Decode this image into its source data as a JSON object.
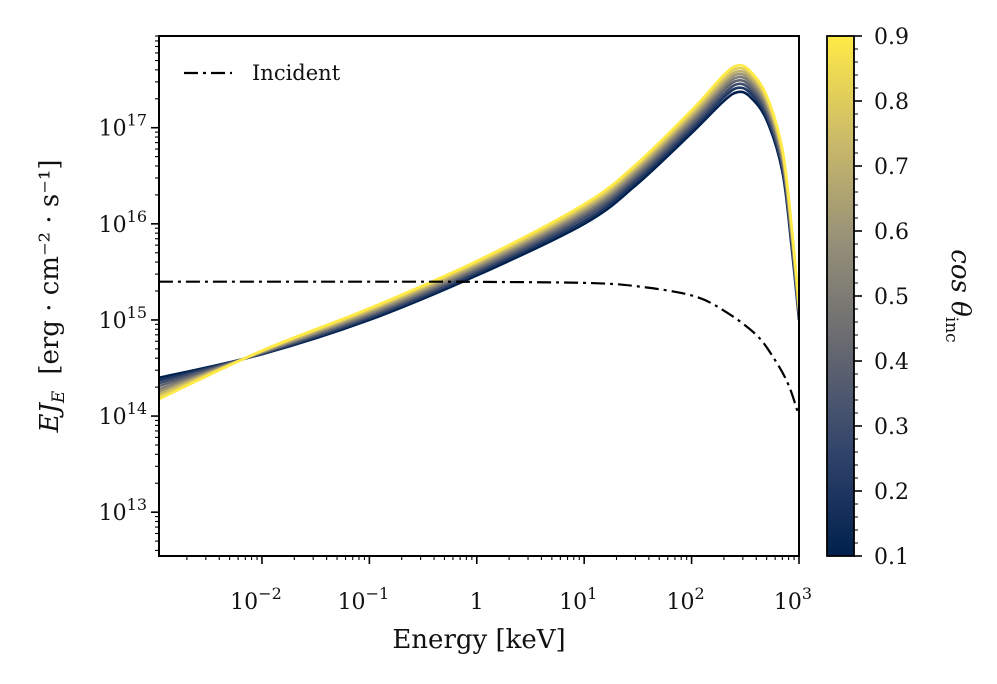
{
  "chart_data": {
    "type": "line",
    "x_scale": "log",
    "y_scale": "log",
    "xlabel": "Energy [keV]",
    "ylabel": {
      "symbol": "EJ",
      "subscript": "E",
      "units": "[erg · cm⁻² · s⁻¹]"
    },
    "xlim": [
      0.0011,
      1000
    ],
    "ylim": [
      3500000000000.0,
      9e+17
    ],
    "x_ticks": [
      {
        "value": 0.01,
        "base": "10",
        "exp": "−2"
      },
      {
        "value": 0.1,
        "base": "10",
        "exp": "−1"
      },
      {
        "value": 1,
        "base": "1",
        "exp": ""
      },
      {
        "value": 10,
        "base": "10",
        "exp": "1"
      },
      {
        "value": 100,
        "base": "10",
        "exp": "2"
      },
      {
        "value": 1000,
        "base": "10",
        "exp": "3"
      }
    ],
    "y_ticks": [
      {
        "value": 10000000000000.0,
        "base": "10",
        "exp": "13"
      },
      {
        "value": 100000000000000.0,
        "base": "10",
        "exp": "14"
      },
      {
        "value": 1000000000000000.0,
        "base": "10",
        "exp": "15"
      },
      {
        "value": 1e+16,
        "base": "10",
        "exp": "16"
      },
      {
        "value": 1e+17,
        "base": "10",
        "exp": "17"
      }
    ],
    "incident": {
      "name": "Incident",
      "style": "dashdot",
      "color": "#000000",
      "points": [
        [
          0.0011,
          2500000000000000.0
        ],
        [
          0.3,
          2500000000000000.0
        ],
        [
          1,
          2490000000000000.0
        ],
        [
          10,
          2430000000000000.0
        ],
        [
          30,
          2250000000000000.0
        ],
        [
          100,
          1800000000000000.0
        ],
        [
          200,
          1250000000000000.0
        ],
        [
          400,
          700000000000000.0
        ],
        [
          600,
          380000000000000.0
        ],
        [
          800,
          210000000000000.0
        ],
        [
          1000,
          100000000000000.0
        ]
      ]
    },
    "series": [
      {
        "name": "cos θ = 0.1",
        "cos_theta": 0.1,
        "points": [
          [
            0.0011,
            250000000000000.0
          ],
          [
            0.01,
            440000000000000.0
          ],
          [
            0.1,
            1000000000000000.0
          ],
          [
            1,
            2900000000000000.0
          ],
          [
            10,
            1e+16
          ],
          [
            30,
            2.5e+16
          ],
          [
            100,
            8.8e+16
          ],
          [
            200,
            1.9e+17
          ],
          [
            270,
            2.35e+17
          ],
          [
            350,
            2.1e+17
          ],
          [
            500,
            1.2e+17
          ],
          [
            700,
            3.5e+16
          ],
          [
            850,
            6000000000000000.0
          ],
          [
            1000,
            1000000000000000.0
          ]
        ]
      },
      {
        "name": "cos θ = 0.2",
        "cos_theta": 0.2,
        "points": [
          [
            0.0011,
            235000000000000.0
          ],
          [
            0.01,
            445000000000000.0
          ],
          [
            0.1,
            1040000000000000.0
          ],
          [
            1,
            3050000000000000.0
          ],
          [
            10,
            1.07e+16
          ],
          [
            30,
            2.7e+16
          ],
          [
            100,
            9.5e+16
          ],
          [
            200,
            2.08e+17
          ],
          [
            270,
            2.6e+17
          ],
          [
            350,
            2.3e+17
          ],
          [
            500,
            1.3e+17
          ],
          [
            700,
            3.8e+16
          ],
          [
            850,
            6500000000000000.0
          ],
          [
            1000,
            1050000000000000.0
          ]
        ]
      },
      {
        "name": "cos θ = 0.3",
        "cos_theta": 0.3,
        "points": [
          [
            0.0011,
            220000000000000.0
          ],
          [
            0.01,
            450000000000000.0
          ],
          [
            0.1,
            1080000000000000.0
          ],
          [
            1,
            3200000000000000.0
          ],
          [
            10,
            1.15e+16
          ],
          [
            30,
            2.9e+16
          ],
          [
            100,
            1.02e+17
          ],
          [
            200,
            2.25e+17
          ],
          [
            270,
            2.85e+17
          ],
          [
            350,
            2.5e+17
          ],
          [
            500,
            1.4e+17
          ],
          [
            700,
            4.1e+16
          ],
          [
            850,
            7000000000000000.0
          ],
          [
            1000,
            1100000000000000.0
          ]
        ]
      },
      {
        "name": "cos θ = 0.4",
        "cos_theta": 0.4,
        "points": [
          [
            0.0011,
            205000000000000.0
          ],
          [
            0.01,
            455000000000000.0
          ],
          [
            0.1,
            1120000000000000.0
          ],
          [
            1,
            3350000000000000.0
          ],
          [
            10,
            1.22e+16
          ],
          [
            30,
            3.1e+16
          ],
          [
            100,
            1.1e+17
          ],
          [
            200,
            2.45e+17
          ],
          [
            270,
            3.1e+17
          ],
          [
            350,
            2.72e+17
          ],
          [
            500,
            1.52e+17
          ],
          [
            700,
            4.4e+16
          ],
          [
            850,
            7500000000000000.0
          ],
          [
            1000,
            1150000000000000.0
          ]
        ]
      },
      {
        "name": "cos θ = 0.5",
        "cos_theta": 0.5,
        "points": [
          [
            0.0011,
            190000000000000.0
          ],
          [
            0.01,
            460000000000000.0
          ],
          [
            0.1,
            1160000000000000.0
          ],
          [
            1,
            3500000000000000.0
          ],
          [
            10,
            1.3e+16
          ],
          [
            30,
            3.3e+16
          ],
          [
            100,
            1.18e+17
          ],
          [
            200,
            2.65e+17
          ],
          [
            270,
            3.35e+17
          ],
          [
            350,
            2.95e+17
          ],
          [
            500,
            1.64e+17
          ],
          [
            700,
            4.7e+16
          ],
          [
            850,
            8000000000000000.0
          ],
          [
            1000,
            1200000000000000.0
          ]
        ]
      },
      {
        "name": "cos θ = 0.6",
        "cos_theta": 0.6,
        "points": [
          [
            0.0011,
            180000000000000.0
          ],
          [
            0.01,
            465000000000000.0
          ],
          [
            0.1,
            1200000000000000.0
          ],
          [
            1,
            3650000000000000.0
          ],
          [
            10,
            1.37e+16
          ],
          [
            30,
            3.5e+16
          ],
          [
            100,
            1.26e+17
          ],
          [
            200,
            2.85e+17
          ],
          [
            270,
            3.6e+17
          ],
          [
            350,
            3.17e+17
          ],
          [
            500,
            1.76e+17
          ],
          [
            700,
            5e+16
          ],
          [
            850,
            8500000000000000.0
          ],
          [
            1000,
            1250000000000000.0
          ]
        ]
      },
      {
        "name": "cos θ = 0.7",
        "cos_theta": 0.7,
        "points": [
          [
            0.0011,
            170000000000000.0
          ],
          [
            0.01,
            470000000000000.0
          ],
          [
            0.1,
            1240000000000000.0
          ],
          [
            1,
            3800000000000000.0
          ],
          [
            10,
            1.44e+16
          ],
          [
            30,
            3.7e+16
          ],
          [
            100,
            1.34e+17
          ],
          [
            200,
            3.05e+17
          ],
          [
            270,
            3.85e+17
          ],
          [
            350,
            3.4e+17
          ],
          [
            500,
            1.88e+17
          ],
          [
            700,
            5.3e+16
          ],
          [
            850,
            9000000000000000.0
          ],
          [
            1000,
            1300000000000000.0
          ]
        ]
      },
      {
        "name": "cos θ = 0.8",
        "cos_theta": 0.8,
        "points": [
          [
            0.0011,
            160000000000000.0
          ],
          [
            0.01,
            475000000000000.0
          ],
          [
            0.1,
            1280000000000000.0
          ],
          [
            1,
            3950000000000000.0
          ],
          [
            10,
            1.52e+16
          ],
          [
            30,
            3.9e+16
          ],
          [
            100,
            1.43e+17
          ],
          [
            200,
            3.3e+17
          ],
          [
            270,
            4.15e+17
          ],
          [
            350,
            3.65e+17
          ],
          [
            500,
            2e+17
          ],
          [
            700,
            5.7e+16
          ],
          [
            850,
            9500000000000000.0
          ],
          [
            1000,
            1350000000000000.0
          ]
        ]
      },
      {
        "name": "cos θ = 0.9",
        "cos_theta": 0.9,
        "points": [
          [
            0.0011,
            150000000000000.0
          ],
          [
            0.01,
            480000000000000.0
          ],
          [
            0.1,
            1320000000000000.0
          ],
          [
            1,
            4100000000000000.0
          ],
          [
            10,
            1.6e+16
          ],
          [
            30,
            4.1e+16
          ],
          [
            100,
            1.52e+17
          ],
          [
            200,
            3.55e+17
          ],
          [
            270,
            4.45e+17
          ],
          [
            350,
            3.9e+17
          ],
          [
            500,
            2.15e+17
          ],
          [
            700,
            6e+16
          ],
          [
            850,
            1e+16
          ],
          [
            1000,
            1400000000000000.0
          ]
        ]
      }
    ],
    "legend": {
      "entries": [
        "Incident"
      ],
      "placement": "upper-left"
    },
    "colorbar": {
      "label": "cos θ",
      "label_subscript": "inc",
      "min": 0.1,
      "max": 0.9,
      "tick_labels": [
        "0.1",
        "0.2",
        "0.3",
        "0.4",
        "0.5",
        "0.6",
        "0.7",
        "0.8",
        "0.9"
      ],
      "colormap": "cividis",
      "stops": [
        "#00204d",
        "#31446b",
        "#666870",
        "#958f78",
        "#cbba69",
        "#ffea46"
      ]
    }
  }
}
